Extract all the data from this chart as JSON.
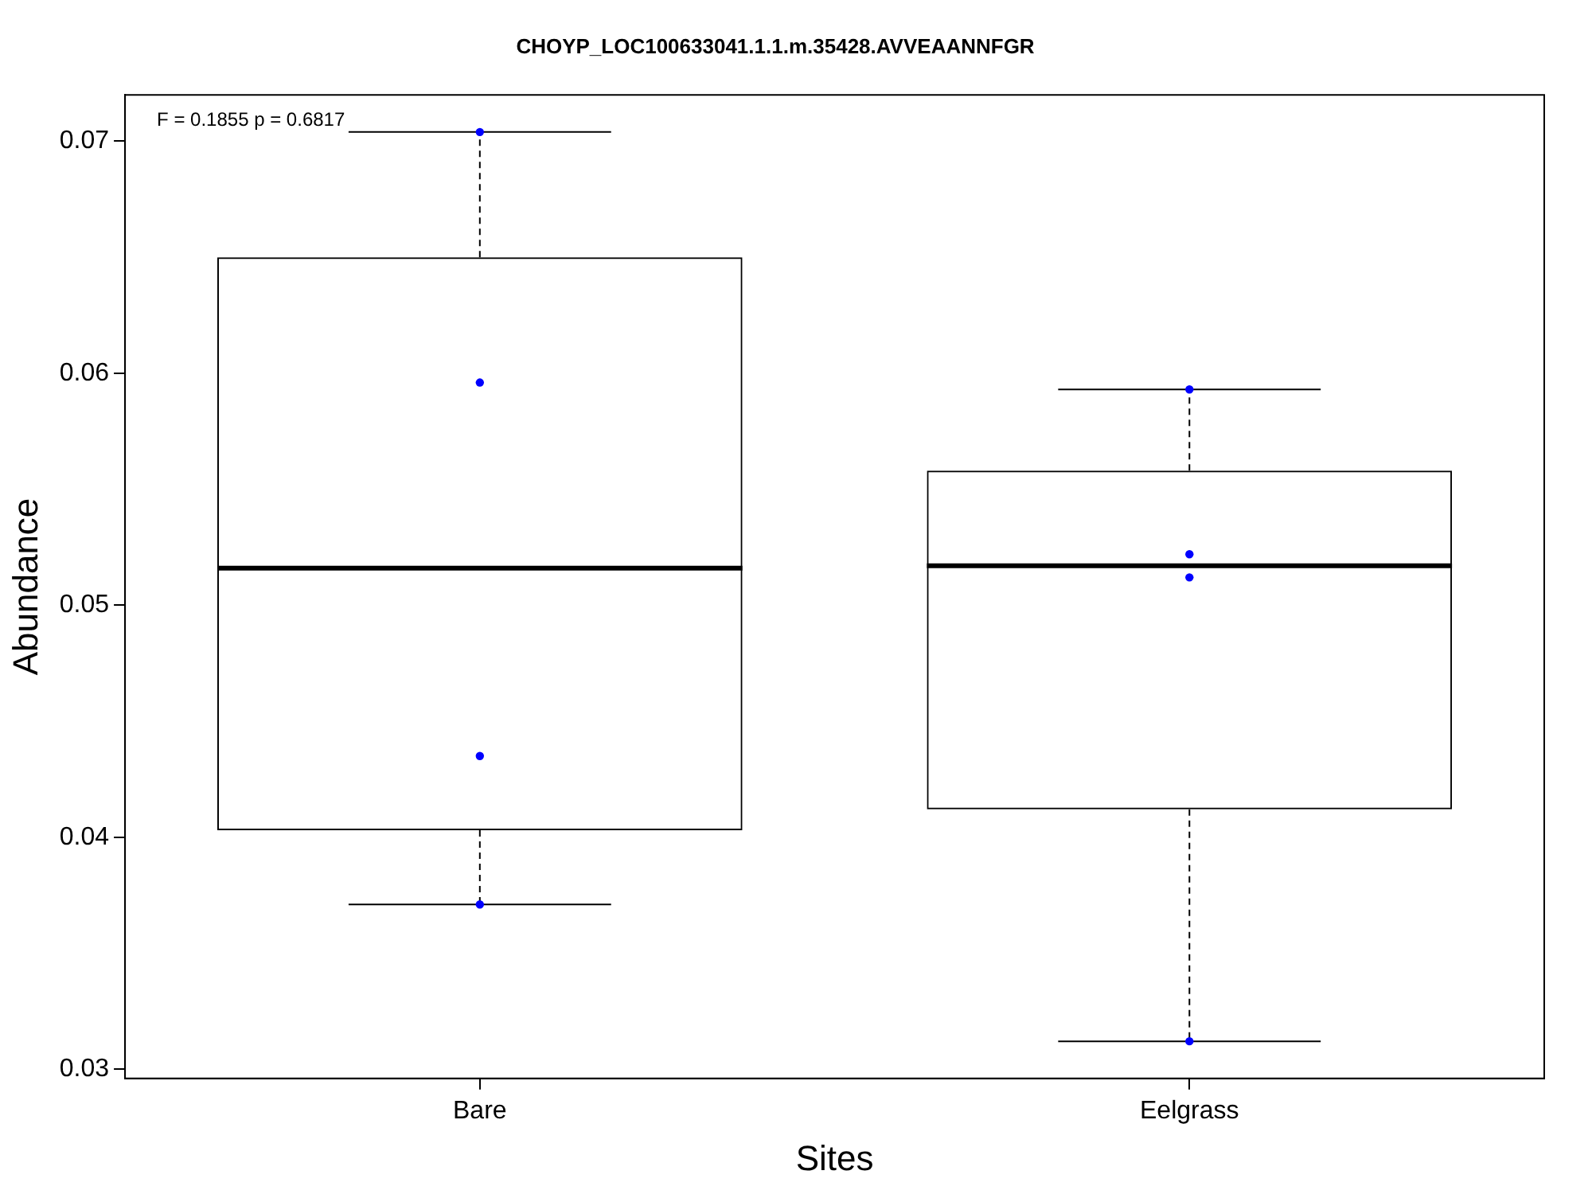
{
  "chart_data": {
    "type": "box",
    "title": "CHOYP_LOC100633041.1.1.m.35428.AVVEAANNFGR",
    "xlabel": "Sites",
    "ylabel": "Abundance",
    "categories": [
      "Bare",
      "Eelgrass"
    ],
    "annotations": [
      "F = 0.1855 p = 0.6817"
    ],
    "ylim": [
      0.0296,
      0.072
    ],
    "yticks": [
      0.03,
      0.04,
      0.05,
      0.06,
      0.07
    ],
    "grid": false,
    "series": [
      {
        "boxes": [
          {
            "low": 0.0371,
            "q1": 0.0403,
            "median": 0.0516,
            "q3": 0.065,
            "high": 0.0704
          },
          {
            "low": 0.0312,
            "q1": 0.0412,
            "median": 0.0517,
            "q3": 0.0558,
            "high": 0.0593
          }
        ]
      },
      {
        "type": "scatter",
        "color": "#0000ff",
        "marker": "circle",
        "x": [
          "Bare",
          "Bare",
          "Bare",
          "Bare",
          "Eelgrass",
          "Eelgrass",
          "Eelgrass",
          "Eelgrass"
        ],
        "values": [
          0.0704,
          0.0596,
          0.0435,
          0.0371,
          0.0593,
          0.0522,
          0.0512,
          0.0312
        ]
      }
    ]
  }
}
